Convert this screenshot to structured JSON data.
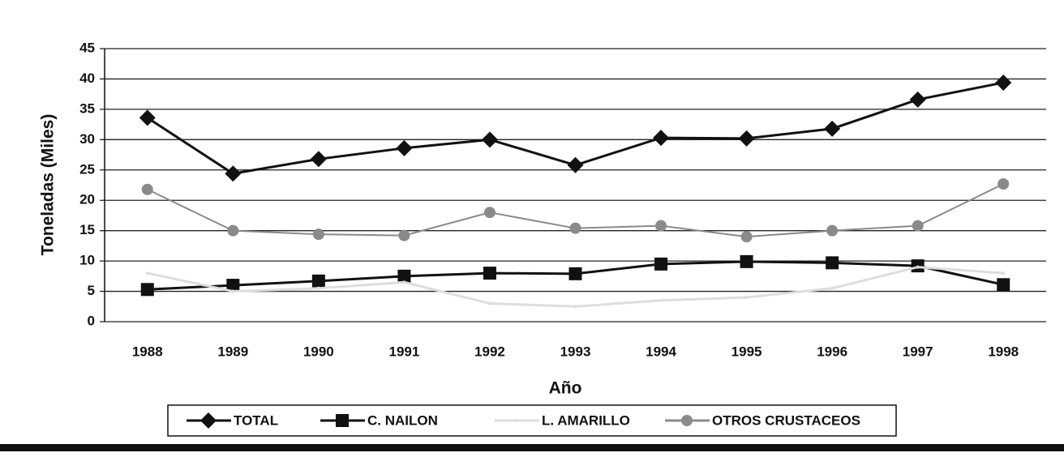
{
  "chart_data": {
    "type": "line",
    "x_label": "Año",
    "y_label": "Toneladas (Miles)",
    "categories": [
      "1988",
      "1989",
      "1990",
      "1991",
      "1992",
      "1993",
      "1994",
      "1995",
      "1996",
      "1997",
      "1998"
    ],
    "series": [
      {
        "name": "TOTAL",
        "color": "#111111",
        "marker": "diamond",
        "values": [
          33.6,
          24.4,
          26.8,
          28.6,
          30,
          25.8,
          30.3,
          30.2,
          31.8,
          36.6,
          39.4
        ]
      },
      {
        "name": "C. NAILON",
        "color": "#111111",
        "marker": "square",
        "values": [
          5.3,
          6,
          6.7,
          7.5,
          8,
          7.9,
          9.5,
          9.9,
          9.7,
          9.2,
          6.1
        ]
      },
      {
        "name": "L. AMARILLO",
        "color": "#dddddd",
        "marker": "none",
        "values": [
          8,
          5,
          5.5,
          6.5,
          3,
          2.5,
          3.5,
          4,
          5.5,
          9,
          8
        ]
      },
      {
        "name": "OTROS CRUSTACEOS",
        "color": "#8a8a8a",
        "marker": "circle",
        "values": [
          21.8,
          15,
          14.4,
          14.2,
          18,
          15.4,
          15.8,
          14,
          15,
          15.8,
          22.7
        ]
      }
    ],
    "ylim": [
      0,
      45
    ],
    "yticks": [
      0,
      5,
      10,
      15,
      20,
      25,
      30,
      35,
      40,
      45
    ],
    "grid": true
  }
}
